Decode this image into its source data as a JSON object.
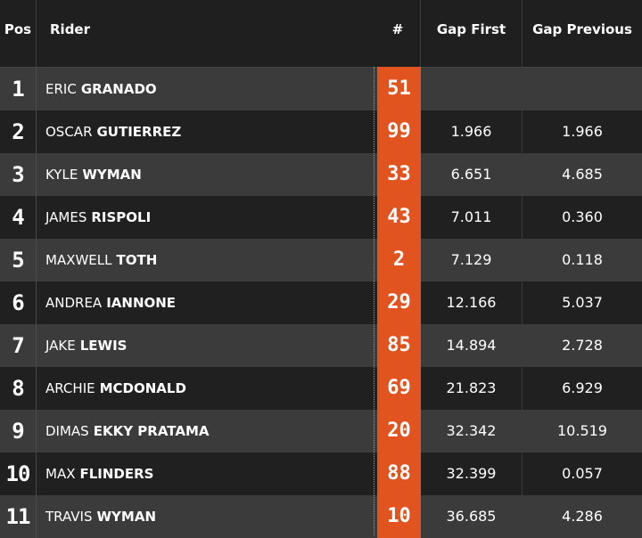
{
  "header": {
    "pos": "Pos",
    "rider": "Rider",
    "number": "#",
    "gap_first": "Gap First",
    "gap_previous": "Gap Previous"
  },
  "colors": {
    "number_bg": "#e2541f"
  },
  "rows": [
    {
      "pos": "1",
      "first": "ERIC",
      "last": "GRANADO",
      "number": "51",
      "gap_first": "",
      "gap_previous": ""
    },
    {
      "pos": "2",
      "first": "OSCAR",
      "last": "GUTIERREZ",
      "number": "99",
      "gap_first": "1.966",
      "gap_previous": "1.966"
    },
    {
      "pos": "3",
      "first": "KYLE",
      "last": "WYMAN",
      "number": "33",
      "gap_first": "6.651",
      "gap_previous": "4.685"
    },
    {
      "pos": "4",
      "first": "JAMES",
      "last": "RISPOLI",
      "number": "43",
      "gap_first": "7.011",
      "gap_previous": "0.360"
    },
    {
      "pos": "5",
      "first": "MAXWELL",
      "last": "TOTH",
      "number": "2",
      "gap_first": "7.129",
      "gap_previous": "0.118"
    },
    {
      "pos": "6",
      "first": "ANDREA",
      "last": "IANNONE",
      "number": "29",
      "gap_first": "12.166",
      "gap_previous": "5.037"
    },
    {
      "pos": "7",
      "first": "JAKE",
      "last": "LEWIS",
      "number": "85",
      "gap_first": "14.894",
      "gap_previous": "2.728"
    },
    {
      "pos": "8",
      "first": "ARCHIE",
      "last": "MCDONALD",
      "number": "69",
      "gap_first": "21.823",
      "gap_previous": "6.929"
    },
    {
      "pos": "9",
      "first": "DIMAS",
      "last": "EKKY PRATAMA",
      "number": "20",
      "gap_first": "32.342",
      "gap_previous": "10.519"
    },
    {
      "pos": "10",
      "first": "MAX",
      "last": "FLINDERS",
      "number": "88",
      "gap_first": "32.399",
      "gap_previous": "0.057"
    },
    {
      "pos": "11",
      "first": "TRAVIS",
      "last": "WYMAN",
      "number": "10",
      "gap_first": "36.685",
      "gap_previous": "4.286"
    }
  ]
}
